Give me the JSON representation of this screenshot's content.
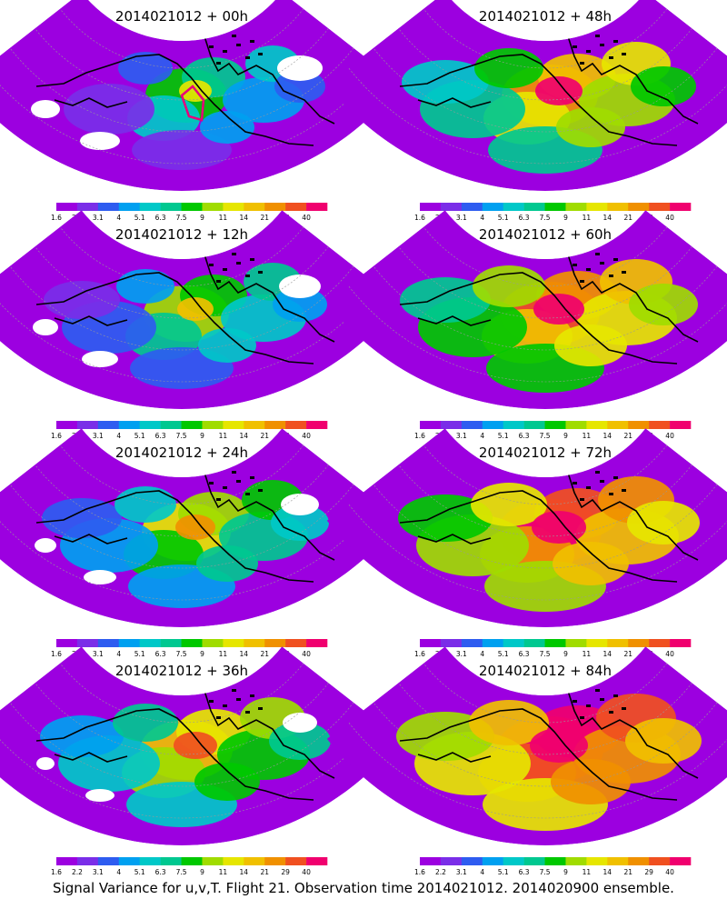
{
  "panels": [
    {
      "title": "2014021012 + 00h",
      "lead": 0
    },
    {
      "title": "2014021012 + 48h",
      "lead": 48
    },
    {
      "title": "2014021012 + 12h",
      "lead": 12
    },
    {
      "title": "2014021012 + 60h",
      "lead": 60
    },
    {
      "title": "2014021012 + 24h",
      "lead": 24
    },
    {
      "title": "2014021012 + 72h",
      "lead": 72
    },
    {
      "title": "2014021012 + 36h",
      "lead": 36
    },
    {
      "title": "2014021012 + 84h",
      "lead": 84
    }
  ],
  "colorbar": {
    "labels": [
      "1.6",
      "2.2",
      "3.1",
      "4",
      "5.1",
      "6.3",
      "7.5",
      "9",
      "11",
      "14",
      "21",
      "29",
      "40"
    ],
    "colors": [
      "#9c00e0",
      "#7a2ee8",
      "#2e5cf0",
      "#00a0f0",
      "#00c8c8",
      "#00c890",
      "#00c800",
      "#a0dc00",
      "#e6e600",
      "#f0c000",
      "#f09000",
      "#f05020",
      "#f0006e"
    ]
  },
  "footer": "Signal Variance for u,v,T. Flight 21. Observation time 2014021012. 2014020900 ensemble.",
  "colors": {
    "coastline": "#000000",
    "graticule": "#999999",
    "flight_track": "#e8007a",
    "background": "#ffffff"
  }
}
